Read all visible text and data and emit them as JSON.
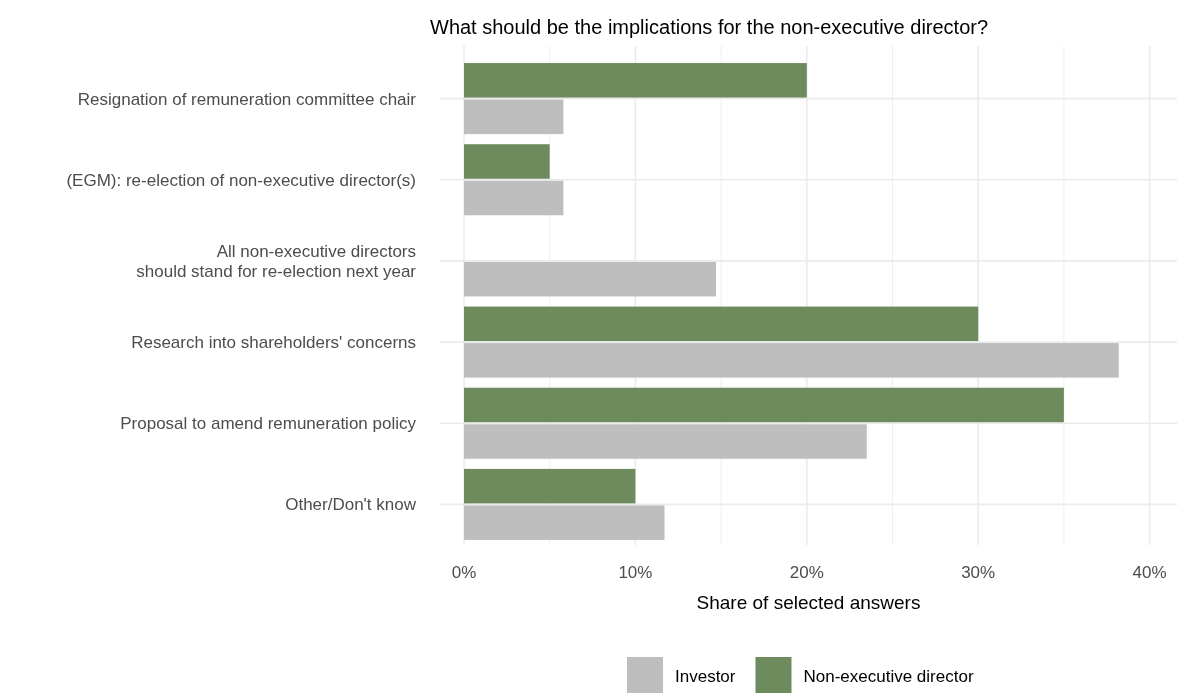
{
  "chart_data": {
    "type": "bar",
    "orientation": "horizontal",
    "title": "What should be the implications for the non-executive director?",
    "xlabel": "Share of selected answers",
    "categories": [
      "Resignation of remuneration committee chair",
      "(EGM): re-election of non-executive director(s)",
      "All non-executive directors\nshould stand for re-election next year",
      "Research into shareholders' concerns",
      "Proposal to amend remuneration policy",
      "Other/Don't know"
    ],
    "series": [
      {
        "name": "Investor",
        "color": "#bebebe",
        "values": [
          5.8,
          5.8,
          14.7,
          38.2,
          23.5,
          11.7
        ]
      },
      {
        "name": "Non-executive director",
        "color": "#6e8b5e",
        "values": [
          20,
          5,
          0,
          30,
          35,
          10
        ]
      }
    ],
    "xlim": [
      -1.4,
      41.6
    ],
    "xticks": [
      {
        "value": 0,
        "label": "0%"
      },
      {
        "value": 5,
        "label": null
      },
      {
        "value": 10,
        "label": "10%"
      },
      {
        "value": 15,
        "label": null
      },
      {
        "value": 20,
        "label": "20%"
      },
      {
        "value": 25,
        "label": null
      },
      {
        "value": 30,
        "label": "30%"
      },
      {
        "value": 35,
        "label": null
      },
      {
        "value": 40,
        "label": "40%"
      }
    ],
    "grid": true,
    "legend": "bottom"
  }
}
